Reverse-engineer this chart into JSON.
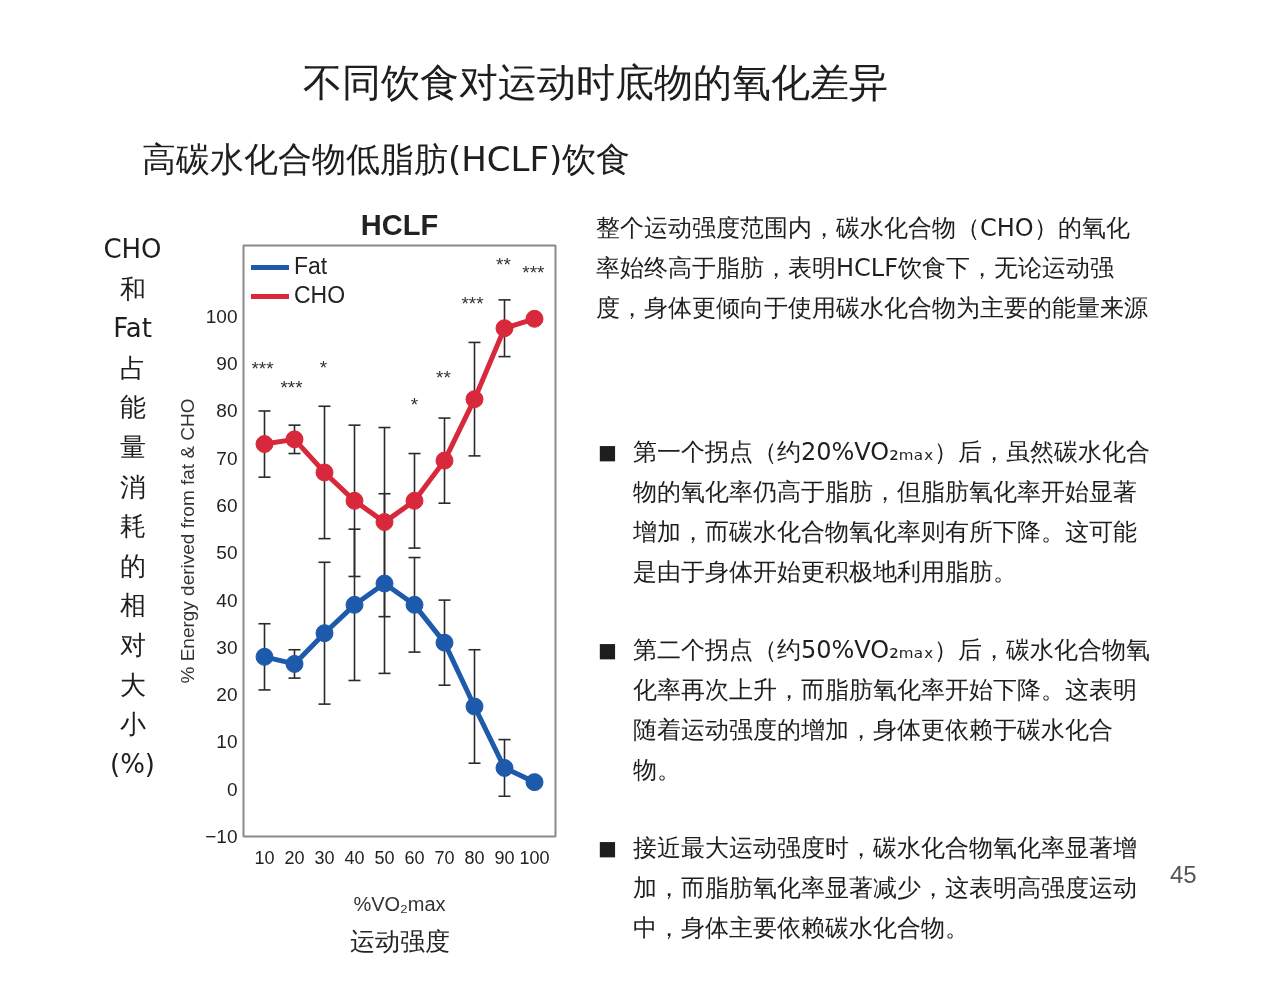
{
  "chart_data": {
    "type": "line",
    "title": "不同饮食对运动时底物的氧化差异",
    "subtitle": "高碳水化合物低脂肪(HCLF)饮食",
    "xlabel": "%VO₂max",
    "ylabel": "% Energy derived from fat & CHO",
    "x": [
      10,
      20,
      30,
      40,
      50,
      60,
      70,
      80,
      90,
      100
    ],
    "xlim": [
      3,
      107
    ],
    "xticks": [
      10,
      20,
      30,
      40,
      50,
      60,
      70,
      80,
      90,
      100
    ],
    "ylim": [
      -10,
      115
    ],
    "yticks": [
      -10,
      0,
      10,
      20,
      30,
      40,
      50,
      60,
      70,
      80,
      90,
      100
    ],
    "series": [
      {
        "name": "Fat",
        "color": "#1d5aab",
        "values": [
          28,
          26.5,
          33,
          39,
          43.5,
          39,
          31,
          17.5,
          4.5,
          1.5
        ],
        "errors": [
          7,
          3,
          15,
          16,
          19,
          10,
          9,
          12,
          6,
          null
        ]
      },
      {
        "name": "CHO",
        "color": "#d8283c",
        "values": [
          73,
          74,
          67,
          61,
          56.5,
          61,
          69.5,
          82.5,
          97.5,
          99.5
        ],
        "errors": [
          7,
          3,
          14,
          16,
          20,
          10,
          9,
          12,
          6,
          null
        ]
      }
    ],
    "marker": "circle",
    "legend": "top left",
    "grid": false,
    "annotations": [
      "HCLF",
      "CHO和Fat占能量消耗的相对大小(%)",
      "运动强度",
      "整个运动强度范围内，碳水化合物（CHO）的氧化率始终高于脂肪，表明HCLF饮食下，无论运动强度，身体更倾向于使用碳水化合物为主要的能量来源",
      "■ 第一个拐点（约20%VO₂ₘₐₓ）后，虽然碳水化合物的氧化率仍高于脂肪，但脂肪氧化率开始显著增加，而碳水化合物氧化率则有所下降。这可能是由于身体开始更积极地利用脂肪。",
      "■ 第二个拐点（约50%VO₂ₘₐₓ）后，碳水化合物氧化率再次上升，而脂肪氧化率开始下降。这表明随着运动强度的增加，身体更依赖于碳水化合物。",
      "■ 接近最大运动强度时，碳水化合物氧化率显著增加，而脂肪氧化率显著减少，这表明高强度运动中，身体主要依赖碳水化合物。",
      "45",
      "***",
      "***",
      "*",
      "*",
      "**",
      "***",
      "**",
      "***"
    ]
  }
}
